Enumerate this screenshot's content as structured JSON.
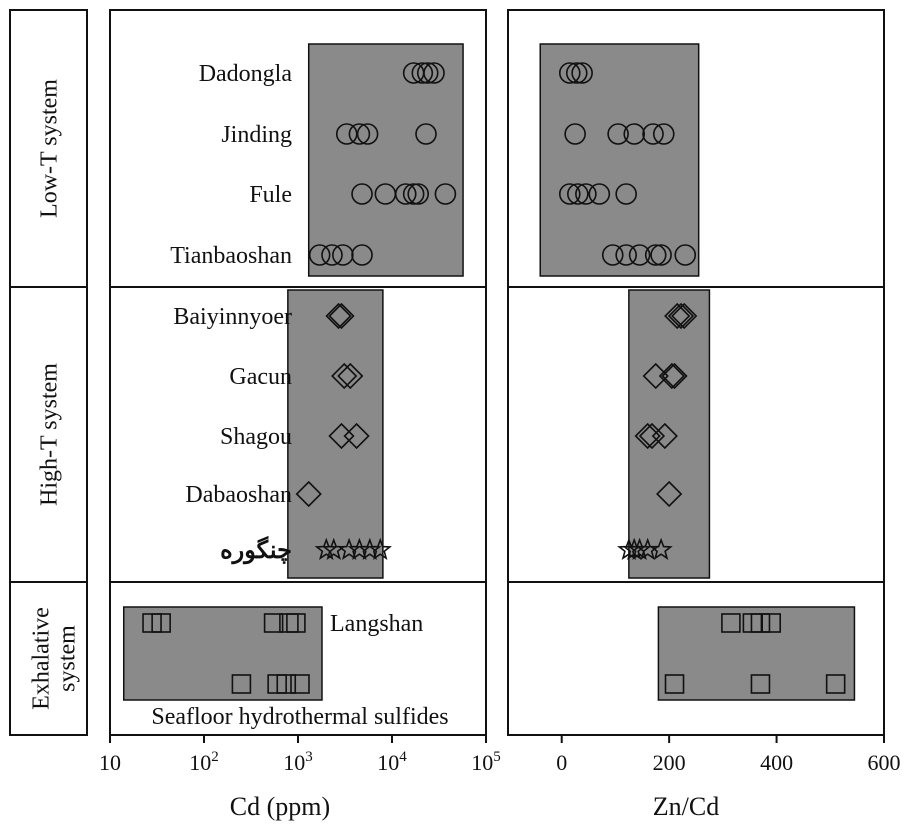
{
  "colors": {
    "box_fill": "#8a8a8a",
    "line": "#111111",
    "background": "#ffffff"
  },
  "chart_data": [
    {
      "type": "scatter",
      "panel": "left",
      "xlabel": "Cd (ppm)",
      "xscale": "log",
      "xlim": [
        10,
        100000
      ],
      "xticks": [
        "10",
        "10^2",
        "10^3",
        "10^4",
        "10^5"
      ],
      "groups": [
        {
          "name": "Low-T system",
          "deposits": [
            "Dadongla",
            "Jinding",
            "Fule",
            "Tianbaoshan"
          ]
        },
        {
          "name": "High-T system",
          "deposits": [
            "Baiyinnyoer",
            "Gacun",
            "Shagou",
            "Dabaoshan",
            "چنگوره"
          ]
        },
        {
          "name": "Exhalative system",
          "deposits": [
            "Langshan",
            "Seafloor hydrothermal sulfides"
          ]
        }
      ],
      "ranges": [
        {
          "group": "Low-T system",
          "x": [
            1300,
            57000
          ]
        },
        {
          "group": "High-T system",
          "x": [
            780,
            8000
          ]
        },
        {
          "group": "Exhalative system",
          "x": [
            14,
            1800
          ]
        }
      ],
      "series": [
        {
          "name": "Dadongla",
          "marker": "circle",
          "x": [
            17000,
            21000,
            24000,
            28000
          ]
        },
        {
          "name": "Jinding",
          "marker": "circle",
          "x": [
            3300,
            4500,
            5500,
            23000
          ]
        },
        {
          "name": "Fule",
          "marker": "circle",
          "x": [
            4800,
            8500,
            14000,
            17000,
            19000,
            37000
          ]
        },
        {
          "name": "Tianbaoshan",
          "marker": "circle",
          "x": [
            1700,
            2300,
            3000,
            4800
          ]
        },
        {
          "name": "Baiyinnyoer",
          "marker": "diamond",
          "x": [
            2700,
            2900
          ]
        },
        {
          "name": "Gacun",
          "marker": "diamond",
          "x": [
            3100,
            3600
          ]
        },
        {
          "name": "Shagou",
          "marker": "diamond",
          "x": [
            2900,
            4200
          ]
        },
        {
          "name": "Dabaoshan",
          "marker": "diamond",
          "x": [
            1300
          ]
        },
        {
          "name": "چنگوره",
          "marker": "star",
          "x": [
            2000,
            2400,
            3500,
            4500,
            5800,
            7500
          ]
        },
        {
          "name": "Langshan",
          "marker": "square",
          "x": [
            28,
            35,
            550,
            800,
            950
          ]
        },
        {
          "name": "Seafloor hydrothermal sulfides",
          "marker": "square",
          "x": [
            250,
            600,
            750,
            1050
          ]
        }
      ]
    },
    {
      "type": "scatter",
      "panel": "right",
      "xlabel": "Zn/Cd",
      "xlim": [
        -100,
        600
      ],
      "xticks": [
        "0",
        "200",
        "400",
        "600"
      ],
      "ranges": [
        {
          "group": "Low-T system",
          "x": [
            -40,
            255
          ]
        },
        {
          "group": "High-T system",
          "x": [
            125,
            275
          ]
        },
        {
          "group": "Exhalative system",
          "x": [
            180,
            545
          ]
        }
      ],
      "series": [
        {
          "name": "Dadongla",
          "marker": "circle",
          "x": [
            15,
            28,
            38
          ]
        },
        {
          "name": "Jinding",
          "marker": "circle",
          "x": [
            25,
            105,
            135,
            170,
            190
          ]
        },
        {
          "name": "Fule",
          "marker": "circle",
          "x": [
            15,
            30,
            45,
            70,
            120
          ]
        },
        {
          "name": "Tianbaoshan",
          "marker": "circle",
          "x": [
            95,
            120,
            145,
            175,
            185,
            230
          ]
        },
        {
          "name": "Baiyinnyoer",
          "marker": "diamond",
          "x": [
            215,
            222,
            228
          ]
        },
        {
          "name": "Gacun",
          "marker": "diamond",
          "x": [
            175,
            205,
            210
          ]
        },
        {
          "name": "Shagou",
          "marker": "diamond",
          "x": [
            160,
            168,
            192
          ]
        },
        {
          "name": "Dabaoshan",
          "marker": "diamond",
          "x": [
            200
          ]
        },
        {
          "name": "چنگوره",
          "marker": "star",
          "x": [
            125,
            135,
            145,
            160,
            185
          ]
        },
        {
          "name": "Langshan",
          "marker": "square",
          "x": [
            315,
            355,
            370,
            390
          ]
        },
        {
          "name": "Seafloor hydrothermal sulfides",
          "marker": "square",
          "x": [
            210,
            370,
            510
          ]
        }
      ]
    }
  ]
}
